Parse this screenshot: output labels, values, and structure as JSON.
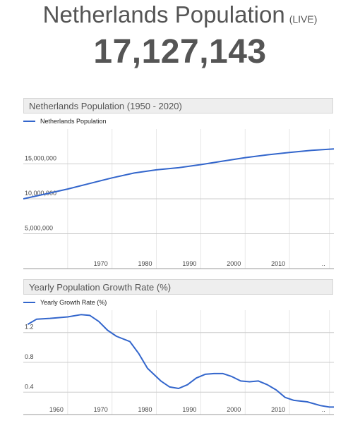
{
  "header": {
    "title": "Netherlands Population",
    "live_label": "(LIVE)",
    "counter": "17,127,143"
  },
  "chart_data": [
    {
      "type": "line",
      "title": "Netherlands Population (1950 - 2020)",
      "legend": {
        "placement": "top-left"
      },
      "series": [
        {
          "name": "Netherlands Population",
          "color": "#3366cc",
          "x": [
            1950,
            1955,
            1960,
            1965,
            1970,
            1975,
            1980,
            1985,
            1990,
            1995,
            2000,
            2005,
            2010,
            2015,
            2020
          ],
          "values": [
            10000000,
            10700000,
            11400000,
            12200000,
            13000000,
            13700000,
            14150000,
            14450000,
            14900000,
            15400000,
            15900000,
            16300000,
            16650000,
            16950000,
            17150000
          ]
        }
      ],
      "x_ticks": [
        "1970",
        "1980",
        "1990",
        "2000",
        "2010",
        ".."
      ],
      "y_ticks": [
        "5,000,000",
        "10,000,000",
        "15,000,000"
      ],
      "xlim": [
        1950,
        2020
      ],
      "ylim": [
        0,
        20000000
      ],
      "grid": true
    },
    {
      "type": "line",
      "title": "Yearly Population Growth Rate (%)",
      "legend": {
        "placement": "top-left"
      },
      "series": [
        {
          "name": "Yearly Growth Rate (%)",
          "color": "#3366cc",
          "x": [
            1951,
            1953,
            1956,
            1960,
            1963,
            1965,
            1967,
            1969,
            1971,
            1974,
            1976,
            1978,
            1981,
            1983,
            1985,
            1987,
            1989,
            1991,
            1993,
            1995,
            1997,
            1999,
            2001,
            2003,
            2005,
            2007,
            2009,
            2011,
            2014,
            2017,
            2019,
            2020
          ],
          "values": [
            1.31,
            1.38,
            1.39,
            1.41,
            1.44,
            1.43,
            1.35,
            1.23,
            1.15,
            1.08,
            0.92,
            0.72,
            0.55,
            0.47,
            0.45,
            0.5,
            0.59,
            0.64,
            0.65,
            0.65,
            0.61,
            0.55,
            0.54,
            0.55,
            0.5,
            0.43,
            0.33,
            0.29,
            0.27,
            0.22,
            0.2,
            0.2
          ]
        }
      ],
      "x_ticks": [
        "1960",
        "1970",
        "1980",
        "1990",
        "2000",
        "2010",
        ".."
      ],
      "y_ticks": [
        "0.4",
        "0.8",
        "1.2"
      ],
      "xlim": [
        1950,
        2020
      ],
      "ylim": [
        0.1,
        1.5
      ],
      "grid": true
    }
  ]
}
